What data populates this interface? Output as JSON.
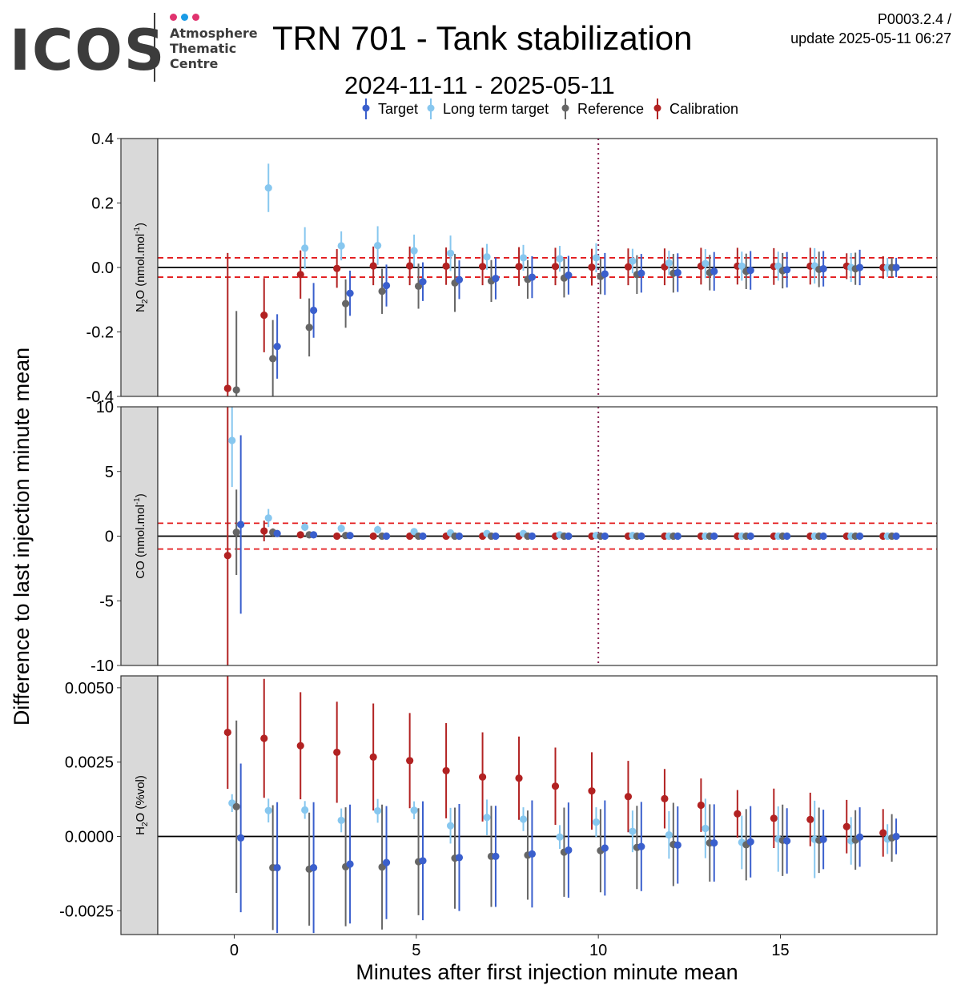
{
  "header": {
    "logo_text": "ICOS",
    "logo_sub": [
      "Atmosphere",
      "Thematic",
      "Centre"
    ],
    "logo_dot_colors": [
      "#e0336e",
      "#1a9be6",
      "#e0336e"
    ],
    "title": "TRN 701 - Tank stabilization",
    "subtitle": "2024-11-11 - 2025-05-11",
    "version_line1": "P0003.2.4 /",
    "version_line2": "update  2025-05-11 06:27"
  },
  "chart_data": {
    "type": "scatter",
    "subtype": "faceted point-range with error bars",
    "xlabel": "Minutes after first injection minute mean",
    "ylabel": "Difference to last injection minute mean",
    "xlim": [
      -2.1,
      19.3
    ],
    "x_ticks": [
      0,
      5,
      10,
      15
    ],
    "vline_x": 10,
    "legend": {
      "position": "top",
      "items": [
        {
          "name": "Target",
          "color": "#3a5fcd"
        },
        {
          "name": "Long term target",
          "color": "#87c7ef"
        },
        {
          "name": "Reference",
          "color": "#666666"
        },
        {
          "name": "Calibration",
          "color": "#b22222"
        }
      ]
    },
    "series_order": [
      "Calibration",
      "Long term target",
      "Reference",
      "Target"
    ],
    "series_dx": [
      -0.18,
      -0.06,
      0.06,
      0.18
    ],
    "x": [
      0,
      1,
      2,
      3,
      4,
      5,
      6,
      7,
      8,
      9,
      10,
      11,
      12,
      13,
      14,
      15,
      16,
      17,
      18
    ],
    "panels": [
      {
        "strip_label": "N2O (nmol.mol-1)",
        "strip_main": "N",
        "strip_sub": "2",
        "strip_rest": "O (nmol.mol",
        "strip_sup": "-1",
        "strip_close": ")",
        "ylim": [
          -0.4,
          0.4
        ],
        "y_ticks": [
          -0.4,
          -0.2,
          0.0,
          0.2,
          0.4
        ],
        "y_tick_labels": [
          "-0.4",
          "-0.2",
          "0.0",
          "0.2",
          "0.4"
        ],
        "threshold": 0.03,
        "series": [
          {
            "name": "Calibration",
            "values": [
              -0.375,
              -0.148,
              -0.022,
              -0.003,
              0.005,
              0.005,
              0.004,
              0.003,
              0.003,
              0.003,
              0.001,
              0.002,
              0.002,
              0.004,
              0.004,
              0.003,
              0.004,
              0.004,
              0.0
            ],
            "err": [
              0.42,
              0.115,
              0.075,
              0.06,
              0.06,
              0.06,
              0.058,
              0.058,
              0.06,
              0.058,
              0.057,
              0.057,
              0.057,
              0.057,
              0.057,
              0.057,
              0.057,
              0.04,
              0.035
            ]
          },
          {
            "name": "Long term target",
            "values": [
              null,
              0.247,
              0.06,
              0.067,
              0.068,
              0.052,
              0.044,
              0.033,
              0.03,
              0.027,
              0.03,
              0.02,
              0.014,
              0.012,
              0.004,
              0.004,
              0.005,
              0.0,
              0.0
            ],
            "err": [
              null,
              0.075,
              0.065,
              0.045,
              0.06,
              0.05,
              0.055,
              0.04,
              0.04,
              0.04,
              0.045,
              0.038,
              0.038,
              0.045,
              0.045,
              0.045,
              0.055,
              0.045,
              0.03
            ]
          },
          {
            "name": "Reference",
            "values": [
              -0.38,
              -0.283,
              -0.186,
              -0.112,
              -0.074,
              -0.058,
              -0.048,
              -0.042,
              -0.037,
              -0.033,
              -0.028,
              -0.022,
              -0.018,
              -0.016,
              -0.012,
              -0.01,
              -0.006,
              -0.004,
              0.0
            ],
            "err": [
              0.245,
              0.12,
              0.09,
              0.075,
              0.07,
              0.07,
              0.09,
              0.065,
              0.06,
              0.06,
              0.055,
              0.06,
              0.06,
              0.055,
              0.055,
              0.055,
              0.055,
              0.05,
              0.03
            ]
          },
          {
            "name": "Target",
            "values": [
              null,
              -0.245,
              -0.133,
              -0.08,
              -0.056,
              -0.044,
              -0.038,
              -0.034,
              -0.03,
              -0.024,
              -0.02,
              -0.018,
              -0.016,
              -0.012,
              -0.009,
              -0.007,
              -0.004,
              0.0,
              0.0
            ],
            "err": [
              null,
              0.1,
              0.085,
              0.07,
              0.065,
              0.06,
              0.06,
              0.065,
              0.065,
              0.06,
              0.065,
              0.06,
              0.06,
              0.06,
              0.06,
              0.055,
              0.055,
              0.055,
              0.03
            ]
          }
        ]
      },
      {
        "strip_label": "CO (nmol.mol-1)",
        "strip_main": "CO (nmol.mol",
        "strip_sub": "",
        "strip_rest": "",
        "strip_sup": "-1",
        "strip_close": ")",
        "ylim": [
          -10,
          10
        ],
        "y_ticks": [
          -10,
          -5,
          0,
          5,
          10
        ],
        "y_tick_labels": [
          "-10",
          "-5",
          "0",
          "5",
          "10"
        ],
        "threshold": 1,
        "series": [
          {
            "name": "Calibration",
            "values": [
              -1.5,
              0.4,
              0.1,
              0.0,
              0.0,
              0.0,
              0.0,
              0.0,
              0.0,
              0.0,
              0.0,
              0.0,
              0.0,
              0.0,
              0.0,
              0.0,
              0.0,
              0.0,
              0.0
            ],
            "err": [
              11.5,
              0.8,
              0.2,
              0.15,
              0.15,
              0.15,
              0.12,
              0.12,
              0.12,
              0.12,
              0.1,
              0.1,
              0.1,
              0.1,
              0.1,
              0.1,
              0.1,
              0.1,
              0.1
            ]
          },
          {
            "name": "Long term target",
            "values": [
              7.4,
              1.4,
              0.7,
              0.6,
              0.5,
              0.35,
              0.25,
              0.2,
              0.2,
              0.1,
              0.05,
              0.05,
              0.0,
              0.0,
              0.0,
              0.0,
              0.0,
              0.0,
              0.0
            ],
            "err": [
              3.6,
              0.7,
              0.3,
              0.3,
              0.3,
              0.25,
              0.2,
              0.2,
              0.2,
              0.2,
              0.2,
              0.2,
              0.2,
              0.2,
              0.2,
              0.2,
              0.2,
              0.15,
              0.15
            ]
          },
          {
            "name": "Reference",
            "values": [
              0.3,
              0.3,
              0.1,
              0.05,
              0.0,
              0.0,
              0.0,
              0.0,
              0.0,
              0.0,
              0.0,
              0.0,
              0.0,
              0.0,
              0.0,
              0.0,
              0.0,
              0.0,
              0.0
            ],
            "err": [
              3.3,
              0.3,
              0.2,
              0.15,
              0.12,
              0.12,
              0.1,
              0.1,
              0.1,
              0.1,
              0.1,
              0.1,
              0.1,
              0.1,
              0.1,
              0.1,
              0.1,
              0.1,
              0.1
            ]
          },
          {
            "name": "Target",
            "values": [
              0.9,
              0.2,
              0.1,
              0.05,
              0.0,
              0.0,
              0.0,
              0.0,
              0.0,
              0.0,
              0.0,
              0.0,
              0.0,
              0.0,
              0.0,
              0.0,
              0.0,
              0.0,
              0.0
            ],
            "err": [
              6.9,
              0.25,
              0.2,
              0.15,
              0.12,
              0.12,
              0.1,
              0.1,
              0.1,
              0.1,
              0.1,
              0.1,
              0.1,
              0.1,
              0.1,
              0.1,
              0.1,
              0.1,
              0.1
            ]
          }
        ]
      },
      {
        "strip_label": "H2O (%vol)",
        "strip_main": "H",
        "strip_sub": "2",
        "strip_rest": "O (%vol)",
        "strip_sup": "",
        "strip_close": "",
        "ylim": [
          -0.0033,
          0.0054
        ],
        "y_ticks": [
          -0.0025,
          0.0,
          0.0025,
          0.005
        ],
        "y_tick_labels": [
          "-0.0025",
          "0.0000",
          "0.0025",
          "0.0050"
        ],
        "threshold": null,
        "series": [
          {
            "name": "Calibration",
            "values": [
              0.0035,
              0.0033,
              0.00305,
              0.00283,
              0.00267,
              0.00255,
              0.00221,
              0.002,
              0.00196,
              0.00169,
              0.00153,
              0.00134,
              0.00127,
              0.00105,
              0.00076,
              0.00061,
              0.00057,
              0.00033,
              0.00012
            ],
            "err": [
              0.0019,
              0.002,
              0.0018,
              0.0017,
              0.0018,
              0.0016,
              0.0016,
              0.0015,
              0.0014,
              0.0013,
              0.0013,
              0.0012,
              0.001,
              0.0009,
              0.0008,
              0.001,
              0.0009,
              0.0009,
              0.0008
            ]
          },
          {
            "name": "Long term target",
            "values": [
              0.00112,
              0.00087,
              0.00089,
              0.00054,
              0.00086,
              0.00088,
              0.00036,
              0.00064,
              0.00058,
              -2e-05,
              0.00048,
              0.00017,
              5e-05,
              0.00027,
              -0.0002,
              -9e-05,
              -0.0001,
              -0.00015,
              -9e-05
            ],
            "err": [
              0.0003,
              0.0004,
              0.0003,
              0.0004,
              0.0004,
              0.0003,
              0.0006,
              0.0006,
              0.0004,
              0.0004,
              0.0005,
              0.0007,
              0.0008,
              0.001,
              0.0009,
              0.0011,
              0.0013,
              0.0008,
              0.0005
            ]
          },
          {
            "name": "Reference",
            "values": [
              0.001,
              -0.00105,
              -0.0011,
              -0.00102,
              -0.00103,
              -0.00085,
              -0.00073,
              -0.00067,
              -0.00063,
              -0.00053,
              -0.00048,
              -0.00037,
              -0.00027,
              -0.00022,
              -0.00028,
              -0.00013,
              -0.00013,
              -0.00012,
              -5e-05
            ],
            "err": [
              0.0029,
              0.0021,
              0.0019,
              0.002,
              0.0021,
              0.0018,
              0.0017,
              0.0017,
              0.0015,
              0.0015,
              0.0014,
              0.0014,
              0.0014,
              0.0013,
              0.0012,
              0.0012,
              0.0011,
              0.001,
              0.0008
            ]
          },
          {
            "name": "Target",
            "values": [
              -5e-05,
              -0.00105,
              -0.00105,
              -0.00093,
              -0.00088,
              -0.00082,
              -0.00071,
              -0.00067,
              -0.00059,
              -0.00046,
              -0.00039,
              -0.00034,
              -0.00029,
              -0.00022,
              -0.00018,
              -0.00015,
              -0.0001,
              -2e-05,
              0.0
            ],
            "err": [
              0.0025,
              0.0022,
              0.0022,
              0.002,
              0.0019,
              0.002,
              0.0018,
              0.0017,
              0.0018,
              0.0016,
              0.0016,
              0.0015,
              0.0013,
              0.0013,
              0.0012,
              0.0011,
              0.001,
              0.001,
              0.0006
            ]
          }
        ]
      }
    ]
  }
}
